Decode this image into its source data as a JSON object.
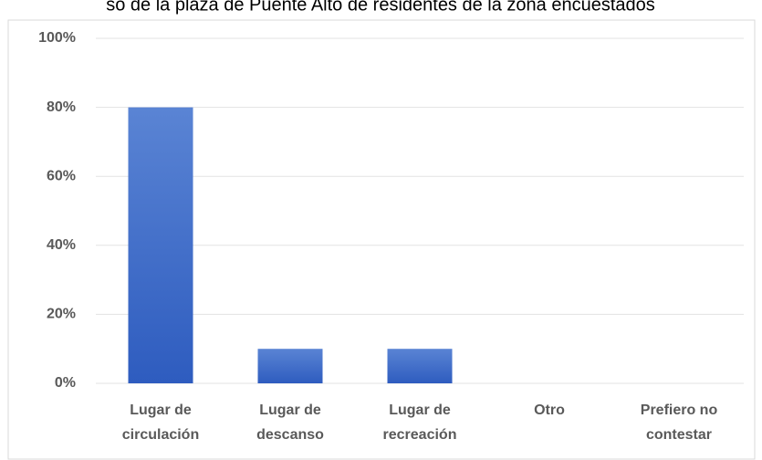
{
  "chart_data": {
    "type": "bar",
    "title": "so de la plaza de Puente Alto de residentes de la zona encuestados",
    "categories": [
      [
        "Lugar de",
        "circulación"
      ],
      [
        "Lugar de",
        "descanso"
      ],
      [
        "Lugar de",
        "recreación"
      ],
      [
        "Otro"
      ],
      [
        "Prefiero no",
        "contestar"
      ]
    ],
    "values": [
      80,
      10,
      10,
      0,
      0
    ],
    "color": "#3e6cc9",
    "ylim": [
      0,
      100
    ],
    "yticks": [
      {
        "value": 0,
        "label": "0%"
      },
      {
        "value": 20,
        "label": "20%"
      },
      {
        "value": 40,
        "label": "40%"
      },
      {
        "value": 60,
        "label": "60%"
      },
      {
        "value": 80,
        "label": "80%"
      },
      {
        "value": 100,
        "label": "100%"
      }
    ],
    "grid": true
  }
}
